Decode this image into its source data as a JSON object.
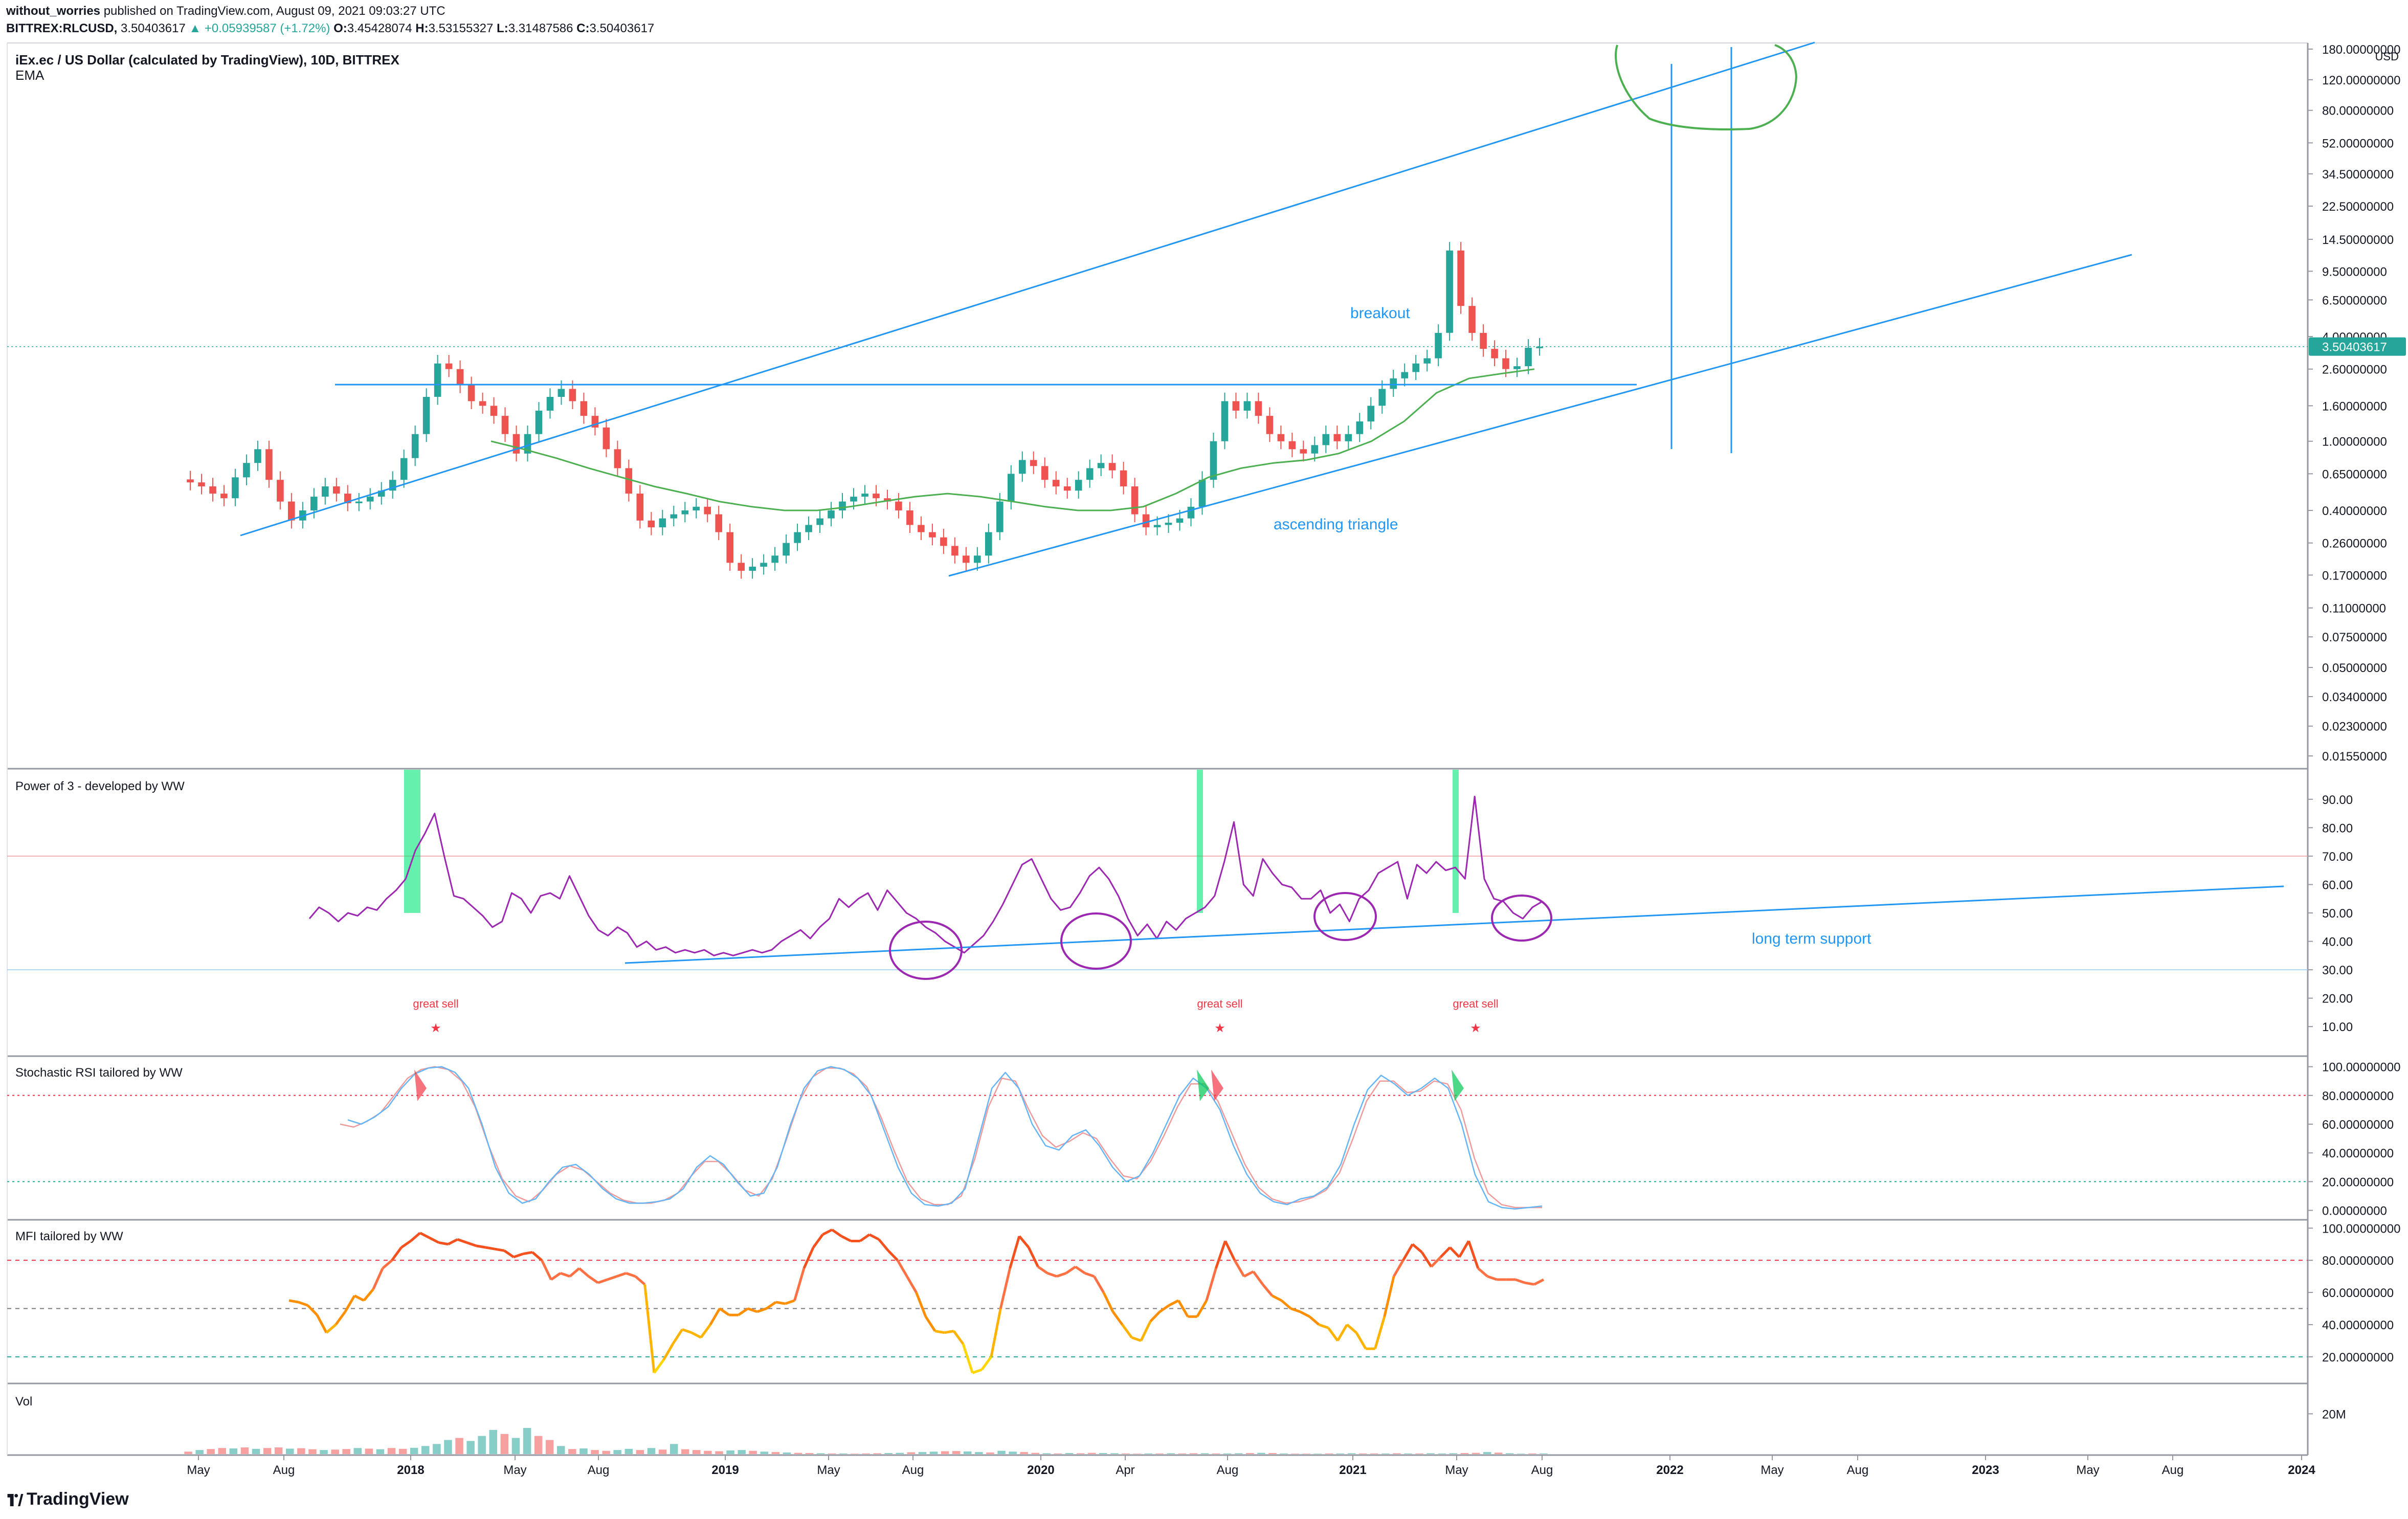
{
  "header": {
    "author": "without_worries",
    "published": "published on TradingView.com, August 09, 2021 09:03:27 UTC",
    "symbol": "BITTREX:RLCUSD,",
    "last": "3.50403617",
    "change": "▲ +0.05939587 (+1.72%)",
    "o_label": "O:",
    "o": "3.45428074",
    "h_label": "H:",
    "h": "3.53155327",
    "l_label": "L:",
    "l": "3.31487586",
    "c_label": "C:",
    "c": "3.50403617"
  },
  "footer": {
    "brand": "TradingView"
  },
  "colors": {
    "up": "#26a69a",
    "down": "#ef5350",
    "trendline": "#2196f3",
    "ema": "#4caf50",
    "circle_green": "#4caf50",
    "circle_purple": "#9c27b0",
    "power_line": "#9c27b0",
    "mfi": "#ff7043",
    "stoch_k": "#64b5f6",
    "stoch_d": "#ef9a9a"
  },
  "chart_data": [
    {
      "type": "candlestick",
      "title": "iEx.ec / US Dollar (calculated by TradingView), 10D, BITTREX",
      "subtitle": "EMA",
      "y_unit": "USD",
      "y_scale": "log",
      "y_ticks": [
        "180.00000000",
        "120.00000000",
        "80.00000000",
        "52.00000000",
        "34.50000000",
        "22.50000000",
        "14.50000000",
        "9.50000000",
        "6.50000000",
        "4.00000000",
        "2.60000000",
        "1.60000000",
        "1.00000000",
        "0.65000000",
        "0.40000000",
        "0.26000000",
        "0.17000000",
        "0.11000000",
        "0.07500000",
        "0.05000000",
        "0.03400000",
        "0.02300000",
        "0.01550000"
      ],
      "x_ticks": [
        "May",
        "Aug",
        "2018",
        "May",
        "Aug",
        "2019",
        "May",
        "Aug",
        "2020",
        "Apr",
        "Aug",
        "2021",
        "May",
        "Aug",
        "2022",
        "May",
        "Aug",
        "2023",
        "May",
        "Aug",
        "2024"
      ],
      "last_price_label": "3.50403617",
      "candles_close_trace": [
        0.58,
        0.55,
        0.5,
        0.47,
        0.62,
        0.75,
        0.9,
        0.6,
        0.45,
        0.35,
        0.4,
        0.48,
        0.55,
        0.5,
        0.44,
        0.45,
        0.48,
        0.52,
        0.6,
        0.8,
        1.1,
        1.8,
        2.8,
        2.6,
        2.1,
        1.7,
        1.6,
        1.4,
        1.1,
        0.85,
        1.1,
        1.5,
        1.8,
        2.0,
        1.7,
        1.4,
        1.2,
        0.9,
        0.7,
        0.5,
        0.35,
        0.32,
        0.36,
        0.38,
        0.4,
        0.42,
        0.38,
        0.3,
        0.2,
        0.18,
        0.19,
        0.2,
        0.22,
        0.26,
        0.3,
        0.33,
        0.36,
        0.4,
        0.45,
        0.48,
        0.5,
        0.47,
        0.45,
        0.4,
        0.33,
        0.3,
        0.28,
        0.25,
        0.22,
        0.2,
        0.22,
        0.3,
        0.45,
        0.65,
        0.78,
        0.72,
        0.6,
        0.55,
        0.52,
        0.6,
        0.7,
        0.75,
        0.68,
        0.55,
        0.38,
        0.32,
        0.33,
        0.34,
        0.36,
        0.42,
        0.6,
        1.0,
        1.7,
        1.5,
        1.7,
        1.4,
        1.1,
        1.0,
        0.9,
        0.85,
        0.95,
        1.1,
        1.0,
        1.1,
        1.3,
        1.6,
        2.0,
        2.3,
        2.5,
        2.8,
        3.0,
        4.2,
        12.5,
        6.0,
        4.2,
        3.4,
        3.0,
        2.6,
        2.7,
        3.45,
        3.5
      ],
      "ema_trace": [
        1.0,
        0.9,
        0.8,
        0.7,
        0.62,
        0.55,
        0.5,
        0.45,
        0.42,
        0.4,
        0.4,
        0.42,
        0.45,
        0.48,
        0.5,
        0.48,
        0.45,
        0.42,
        0.4,
        0.4,
        0.42,
        0.5,
        0.62,
        0.7,
        0.75,
        0.78,
        0.85,
        1.0,
        1.3,
        1.9,
        2.3,
        2.45,
        2.6
      ],
      "annotations": [
        "breakout",
        "ascending triangle"
      ]
    },
    {
      "type": "line",
      "title": "Power of 3 - developed by WW",
      "y_ticks": [
        "90.00",
        "80.00",
        "70.00",
        "60.00",
        "50.00",
        "40.00",
        "30.00",
        "20.00",
        "10.00"
      ],
      "ylim": [
        5,
        95
      ],
      "levels": [
        70,
        30
      ],
      "values": [
        48,
        52,
        50,
        47,
        50,
        49,
        52,
        51,
        55,
        58,
        62,
        72,
        78,
        85,
        70,
        56,
        55,
        52,
        49,
        45,
        47,
        57,
        55,
        50,
        56,
        57,
        55,
        63,
        56,
        49,
        44,
        42,
        45,
        43,
        38,
        40,
        37,
        38,
        36,
        37,
        36,
        37,
        35,
        36,
        35,
        36,
        37,
        36,
        37,
        40,
        42,
        44,
        41,
        45,
        48,
        55,
        52,
        55,
        57,
        51,
        58,
        54,
        50,
        48,
        45,
        43,
        40,
        38,
        36,
        39,
        42,
        47,
        53,
        60,
        67,
        69,
        62,
        55,
        51,
        52,
        57,
        63,
        66,
        62,
        56,
        48,
        42,
        46,
        41,
        47,
        44,
        48,
        50,
        52,
        56,
        68,
        82,
        60,
        56,
        69,
        64,
        60,
        59,
        55,
        55,
        58,
        50,
        53,
        47,
        55,
        58,
        64,
        66,
        68,
        55,
        67,
        64,
        68,
        65,
        66,
        62,
        91,
        62,
        55,
        54,
        50,
        48,
        52,
        54
      ],
      "annotations": [
        "great sell",
        "great sell",
        "great sell",
        "long term support"
      ]
    },
    {
      "type": "line",
      "title": "Stochastic RSI tailored by WW",
      "y_ticks": [
        "100.00000000",
        "80.00000000",
        "60.00000000",
        "40.00000000",
        "20.00000000",
        "0.00000000"
      ],
      "ylim": [
        -3,
        102
      ],
      "levels": [
        80,
        20
      ],
      "k_values": [
        63,
        60,
        65,
        72,
        85,
        95,
        99,
        100,
        96,
        85,
        60,
        30,
        12,
        5,
        8,
        20,
        30,
        32,
        25,
        15,
        8,
        5,
        5,
        6,
        8,
        15,
        30,
        38,
        32,
        20,
        10,
        12,
        30,
        60,
        85,
        97,
        100,
        98,
        92,
        80,
        55,
        30,
        12,
        4,
        3,
        5,
        15,
        50,
        85,
        96,
        85,
        60,
        45,
        42,
        52,
        56,
        45,
        30,
        20,
        24,
        40,
        60,
        80,
        92,
        85,
        70,
        45,
        25,
        12,
        6,
        4,
        8,
        10,
        16,
        32,
        60,
        84,
        94,
        88,
        80,
        85,
        92,
        85,
        60,
        25,
        6,
        2,
        1,
        2,
        3
      ],
      "d_values": [
        60,
        58,
        62,
        68,
        80,
        92,
        98,
        100,
        98,
        90,
        72,
        45,
        22,
        10,
        6,
        14,
        25,
        31,
        28,
        20,
        12,
        7,
        5,
        5,
        7,
        12,
        24,
        34,
        34,
        25,
        14,
        10,
        22,
        48,
        76,
        93,
        99,
        99,
        95,
        86,
        66,
        42,
        20,
        8,
        4,
        4,
        10,
        36,
        72,
        92,
        90,
        70,
        52,
        44,
        48,
        54,
        50,
        36,
        24,
        22,
        34,
        52,
        72,
        88,
        88,
        76,
        54,
        32,
        16,
        8,
        5,
        6,
        9,
        14,
        26,
        50,
        76,
        90,
        90,
        82,
        83,
        90,
        88,
        70,
        36,
        12,
        4,
        2,
        2,
        2
      ]
    },
    {
      "type": "line",
      "title": "MFI tailored by WW",
      "y_ticks": [
        "100.00000000",
        "80.00000000",
        "60.00000000",
        "40.00000000",
        "20.00000000"
      ],
      "ylim": [
        5,
        102
      ],
      "levels": [
        80,
        50,
        20
      ],
      "values": [
        55,
        54,
        52,
        46,
        35,
        40,
        48,
        58,
        55,
        62,
        75,
        80,
        88,
        92,
        97,
        94,
        91,
        90,
        93,
        91,
        89,
        88,
        87,
        86,
        82,
        84,
        85,
        80,
        68,
        72,
        70,
        75,
        70,
        66,
        68,
        70,
        72,
        70,
        65,
        10,
        18,
        28,
        37,
        35,
        32,
        40,
        50,
        46,
        46,
        50,
        48,
        50,
        54,
        53,
        55,
        75,
        88,
        96,
        99,
        95,
        92,
        92,
        96,
        93,
        86,
        80,
        70,
        60,
        45,
        36,
        35,
        36,
        28,
        10,
        12,
        20,
        50,
        75,
        95,
        88,
        76,
        72,
        70,
        72,
        76,
        72,
        70,
        60,
        48,
        40,
        32,
        30,
        42,
        48,
        52,
        55,
        45,
        45,
        55,
        75,
        92,
        80,
        70,
        73,
        65,
        58,
        55,
        50,
        48,
        45,
        40,
        38,
        30,
        40,
        35,
        25,
        25,
        45,
        70,
        80,
        90,
        85,
        76,
        82,
        88,
        82,
        92,
        75,
        70,
        68,
        68,
        68,
        66,
        65,
        68
      ],
      "palette": [
        "#ffd600",
        "#ffb300",
        "#ff8f00",
        "#ff7043",
        "#f4511e"
      ]
    },
    {
      "type": "bar",
      "title": "Vol",
      "y_ticks": [
        "20M"
      ],
      "ylim": [
        0,
        30
      ],
      "values": [
        1.2,
        2.0,
        2.5,
        3.0,
        2.8,
        3.3,
        2.6,
        3.0,
        3.3,
        2.7,
        2.9,
        2.4,
        2.0,
        2.2,
        2.5,
        3.0,
        2.7,
        2.4,
        3.0,
        2.6,
        3.1,
        4.0,
        5.0,
        7.0,
        8.0,
        6.5,
        9.0,
        12.0,
        10.0,
        8.0,
        13.0,
        9.0,
        7.0,
        4.0,
        2.5,
        2.8,
        2.0,
        1.6,
        2.0,
        2.6,
        2.0,
        3.0,
        2.2,
        5.0,
        2.4,
        2.0,
        1.6,
        1.4,
        1.8,
        2.0,
        1.6,
        1.2,
        1.0,
        0.8,
        0.6,
        0.5,
        0.4,
        0.3,
        0.3,
        0.2,
        0.3,
        0.4,
        0.5,
        0.6,
        0.9,
        1.0,
        1.2,
        1.4,
        1.5,
        1.3,
        1.0,
        0.8,
        1.6,
        1.2,
        1.0,
        0.6,
        0.4,
        0.3,
        0.5,
        0.4,
        0.6,
        0.5,
        0.4,
        0.3,
        0.2,
        0.3,
        0.3,
        0.4,
        0.3,
        0.4,
        0.4,
        0.3,
        0.3,
        0.4,
        0.5,
        0.6,
        0.5,
        0.3,
        0.2,
        0.2,
        0.2,
        0.3,
        0.3,
        0.4,
        0.3,
        0.3,
        0.3,
        0.4,
        0.3,
        0.3,
        0.4,
        0.3,
        0.4,
        0.5,
        0.6,
        1.0,
        0.7,
        0.4,
        0.2,
        0.3,
        0.3
      ],
      "up_flags": [
        0,
        1,
        0,
        0,
        1,
        0,
        1,
        0,
        0,
        1,
        0,
        0,
        1,
        0,
        0,
        1,
        0,
        1,
        0,
        0,
        1,
        1,
        1,
        1,
        0,
        1,
        1,
        1,
        0,
        1,
        1,
        0,
        0,
        1,
        0,
        1,
        0,
        0,
        1,
        1,
        0,
        1,
        0,
        1,
        0,
        0,
        0,
        0,
        1,
        1,
        0,
        1,
        0,
        1,
        0,
        0,
        1,
        0,
        1,
        0,
        0,
        0,
        1,
        1,
        0,
        1,
        1,
        0,
        0,
        1,
        1,
        0,
        1,
        1,
        0,
        0,
        1,
        0,
        1,
        0,
        0,
        1,
        1,
        0,
        0,
        1,
        0,
        1,
        0,
        0,
        1,
        0,
        1,
        1,
        0,
        1,
        0,
        1,
        0,
        0,
        1,
        0,
        1,
        1,
        0,
        0,
        1,
        0,
        1,
        0,
        1,
        1,
        1,
        0,
        0,
        1,
        0,
        1,
        1,
        0,
        1
      ]
    }
  ]
}
